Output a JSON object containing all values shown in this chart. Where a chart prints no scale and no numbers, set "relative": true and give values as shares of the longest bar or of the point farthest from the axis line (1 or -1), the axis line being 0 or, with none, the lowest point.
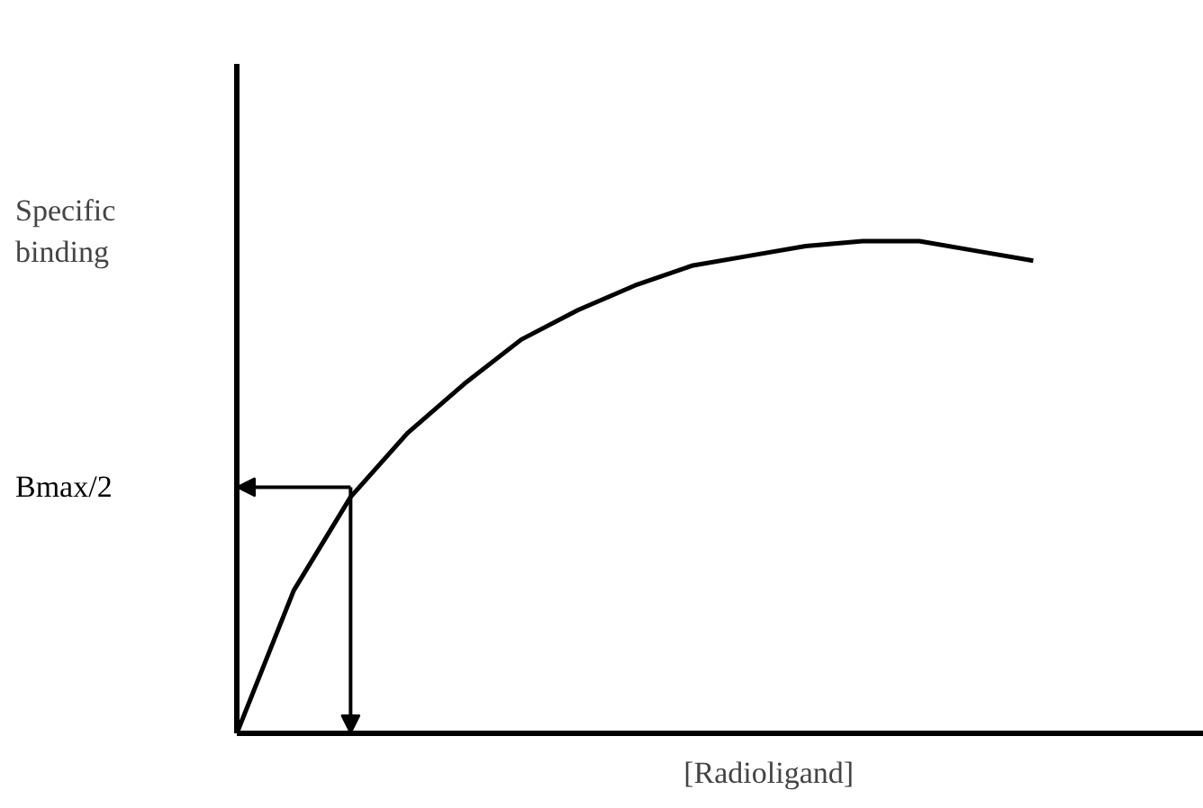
{
  "chart_data": {
    "type": "line",
    "relative": true,
    "ylabel": "Specific binding",
    "xlabel": "[Radioligand]",
    "categories": [
      null,
      null,
      null,
      null,
      null,
      null,
      null,
      null,
      null,
      null,
      null,
      null,
      null,
      null,
      null,
      null,
      null,
      null
    ],
    "series": [
      {
        "color": "#000000",
        "values": [
          0,
          0.29,
          0.48,
          0.61,
          0.71,
          0.8,
          0.86,
          0.91,
          0.95,
          0.97,
          0.99,
          1.0,
          1.0,
          0.98,
          0.96,
          null,
          null,
          null
        ]
      }
    ],
    "annotations": [
      "Bmax/2"
    ],
    "grid": false,
    "marker": "none",
    "line_style": "solid"
  }
}
